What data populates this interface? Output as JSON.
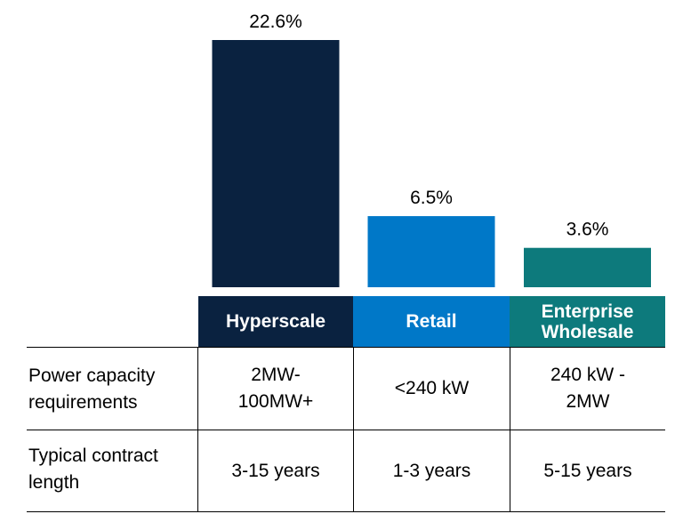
{
  "chart_data": {
    "type": "bar",
    "categories": [
      "Hyperscale",
      "Retail",
      "Enterprise Wholesale"
    ],
    "values": [
      22.6,
      6.5,
      3.6
    ],
    "value_labels": [
      "22.6%",
      "6.5%",
      "3.6%"
    ],
    "colors": [
      "#0a2240",
      "#0078c8",
      "#0d7a7c"
    ],
    "ylim": [
      0,
      22.6
    ],
    "title": "",
    "xlabel": "",
    "ylabel": ""
  },
  "table": {
    "headers": [
      "Hyperscale",
      "Retail",
      "Enterprise Wholesale"
    ],
    "rows": [
      {
        "label": "Power capacity requirements",
        "cells": [
          "2MW- 100MW+",
          "<240 kW",
          "240 kW - 2MW"
        ]
      },
      {
        "label": "Typical contract length",
        "cells": [
          "3-15 years",
          "1-3 years",
          "5-15 years"
        ]
      }
    ]
  }
}
